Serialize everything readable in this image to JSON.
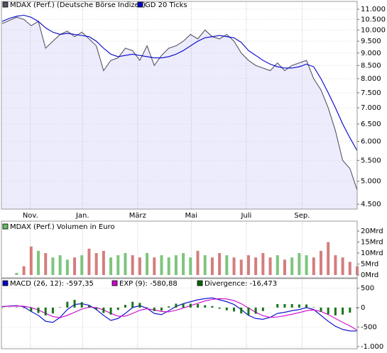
{
  "chart_data": [
    {
      "type": "line",
      "log_scale": true,
      "grid": true,
      "xlim": [
        0,
        49
      ],
      "xticks": [
        {
          "value": 3.9,
          "label": "Nov."
        },
        {
          "value": 11.1,
          "label": "Jan."
        },
        {
          "value": 18.7,
          "label": "März"
        },
        {
          "value": 26.1,
          "label": "Mai"
        },
        {
          "value": 33.7,
          "label": "Juli"
        },
        {
          "value": 41.4,
          "label": "Sep."
        }
      ],
      "ylim": [
        4400,
        11400
      ],
      "yticks": [
        {
          "value": 4500,
          "label": "4.500"
        },
        {
          "value": 5000,
          "label": "5.000"
        },
        {
          "value": 5500,
          "label": "5.500"
        },
        {
          "value": 6000,
          "label": "6.000"
        },
        {
          "value": 6500,
          "label": "6.500"
        },
        {
          "value": 7000,
          "label": "7.000"
        },
        {
          "value": 7500,
          "label": "7.500"
        },
        {
          "value": 8000,
          "label": "8.000"
        },
        {
          "value": 8500,
          "label": "8.500"
        },
        {
          "value": 9000,
          "label": "9.000"
        },
        {
          "value": 9500,
          "label": "9.500"
        },
        {
          "value": 10000,
          "label": "10.000"
        },
        {
          "value": 10500,
          "label": "10.500"
        },
        {
          "value": 11000,
          "label": "11.000"
        }
      ],
      "series": [
        {
          "name": "MDAX (Perf.) (Deutsche Börse Indizes)",
          "color": "#555566",
          "fill": "#ececfc",
          "values": [
            10300,
            10450,
            10600,
            10500,
            10200,
            10400,
            9200,
            9500,
            9800,
            9950,
            9700,
            9900,
            9600,
            9300,
            8300,
            8700,
            8800,
            9200,
            9100,
            8700,
            9300,
            8500,
            8900,
            9200,
            9300,
            9500,
            9800,
            9600,
            10000,
            9700,
            9600,
            9800,
            9500,
            9000,
            8700,
            8500,
            8400,
            8300,
            8600,
            8300,
            8500,
            8600,
            8700,
            8000,
            7600,
            7000,
            6300,
            5500,
            5300,
            4800
          ]
        },
        {
          "name": "GD 20 Ticks",
          "color": "#0000cc",
          "values": [
            10400,
            10550,
            10650,
            10700,
            10600,
            10400,
            10100,
            9900,
            9800,
            9850,
            9800,
            9750,
            9700,
            9500,
            9200,
            8950,
            8850,
            8900,
            8950,
            8900,
            8850,
            8800,
            8800,
            8850,
            8950,
            9100,
            9300,
            9500,
            9650,
            9700,
            9750,
            9700,
            9650,
            9450,
            9100,
            8900,
            8700,
            8550,
            8450,
            8400,
            8400,
            8450,
            8550,
            8450,
            8000,
            7500,
            7000,
            6500,
            6100,
            5750
          ]
        }
      ]
    },
    {
      "type": "bar",
      "xlim": [
        0,
        49
      ],
      "ylim": [
        0,
        20
      ],
      "yticks": [
        {
          "value": 0,
          "label": "0Mrd"
        },
        {
          "value": 5,
          "label": "5Mrd"
        },
        {
          "value": 10,
          "label": "10Mrd"
        },
        {
          "value": 15,
          "label": "15Mrd"
        },
        {
          "value": 20,
          "label": "20Mrd"
        }
      ],
      "series": [
        {
          "name": "MDAX (Perf.) Volumen in Euro",
          "color": "#66bb66",
          "down_color": "#cc6666",
          "values": [
            0,
            0,
            1,
            4,
            13,
            11,
            10,
            8,
            9,
            7,
            8,
            9,
            12,
            10,
            11,
            8,
            9,
            10,
            9,
            8,
            10,
            8,
            9,
            8,
            9,
            10,
            8,
            11,
            9,
            8,
            10,
            9,
            8,
            7,
            9,
            8,
            10,
            8,
            9,
            7,
            8,
            10,
            9,
            8,
            11,
            15,
            9,
            8,
            6,
            4
          ]
        }
      ]
    },
    {
      "type": "line",
      "xlim": [
        0,
        49
      ],
      "ylim": [
        -1020,
        690
      ],
      "yticks": [
        500,
        0,
        -500,
        {
          "value": -1000,
          "label": "-1.000"
        }
      ],
      "series": [
        {
          "name": "MACD (26, 12): -597,35",
          "color": "#0000cc",
          "values": [
            20,
            40,
            50,
            20,
            -100,
            -200,
            -350,
            -380,
            -250,
            -50,
            80,
            100,
            60,
            -50,
            -200,
            -330,
            -280,
            -150,
            0,
            50,
            -20,
            -150,
            -180,
            -80,
            30,
            100,
            150,
            200,
            230,
            250,
            200,
            150,
            80,
            -50,
            -200,
            -280,
            -300,
            -250,
            -150,
            -120,
            -80,
            -50,
            0,
            -50,
            -200,
            -350,
            -480,
            -560,
            -600,
            -600
          ]
        },
        {
          "name": "EXP (9): -580,88",
          "color": "#cc00cc",
          "values": [
            30,
            35,
            40,
            35,
            0,
            -60,
            -150,
            -230,
            -260,
            -200,
            -120,
            -40,
            10,
            0,
            -60,
            -150,
            -220,
            -220,
            -150,
            -70,
            -30,
            -60,
            -100,
            -110,
            -70,
            -10,
            50,
            110,
            170,
            210,
            230,
            220,
            180,
            100,
            -10,
            -120,
            -210,
            -250,
            -240,
            -210,
            -170,
            -130,
            -80,
            -60,
            -100,
            -180,
            -280,
            -380,
            -470,
            -580
          ]
        },
        {
          "name": "Divergence: -16,473",
          "color": "#006600",
          "type": "bar",
          "values": [
            -10,
            5,
            10,
            -15,
            -100,
            -140,
            -200,
            -150,
            10,
            150,
            200,
            140,
            50,
            -50,
            -140,
            -180,
            -60,
            70,
            150,
            120,
            10,
            -90,
            -80,
            30,
            100,
            110,
            100,
            90,
            60,
            40,
            -30,
            -70,
            -100,
            -150,
            -190,
            -160,
            -90,
            0,
            90,
            90,
            90,
            80,
            80,
            10,
            -100,
            -170,
            -200,
            -180,
            -130,
            -20
          ]
        }
      ]
    }
  ]
}
